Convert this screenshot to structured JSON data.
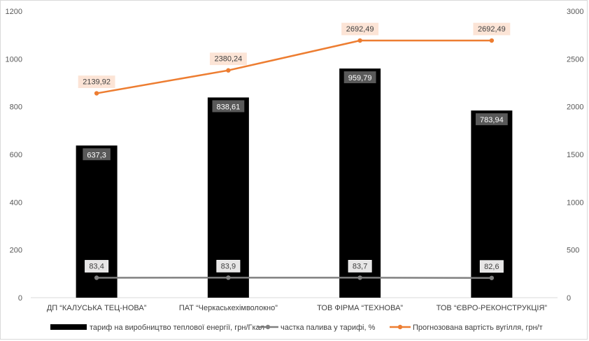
{
  "chart_data": {
    "type": "bar",
    "categories": [
      "ДП “КАЛУСЬКА ТЕЦ-НОВА”",
      "ПАТ “Черкаськехімволокно”",
      "ТОВ ФІРМА “ТЕХНОВА”",
      "ТОВ “ЄВРО-РЕКОНСТРУКЦІЯ”"
    ],
    "series": [
      {
        "name": "тариф на виробництво теплової енергії, грн/Гкал",
        "type": "bar",
        "axis": "left",
        "color": "#000000",
        "values": [
          637.3,
          838.61,
          959.79,
          783.94
        ],
        "labels": [
          "637,3",
          "838,61",
          "959,79",
          "783,94"
        ]
      },
      {
        "name": "частка палива у тарифі, %",
        "type": "line",
        "axis": "left",
        "color": "#808080",
        "values": [
          83.4,
          83.9,
          83.7,
          82.6
        ],
        "labels": [
          "83,4",
          "83,9",
          "83,7",
          "82,6"
        ]
      },
      {
        "name": "Прогнозована вартість вугілля, грн/т",
        "type": "line",
        "axis": "right",
        "color": "#ed7d31",
        "values": [
          2139.92,
          2380.24,
          2692.49,
          2692.49
        ],
        "labels": [
          "2139,92",
          "2380,24",
          "2692,49",
          "2692,49"
        ]
      }
    ],
    "y_left": {
      "min": 0,
      "max": 1200,
      "ticks": [
        0,
        200,
        400,
        600,
        800,
        1000,
        1200
      ]
    },
    "y_right": {
      "min": 0,
      "max": 3000,
      "ticks": [
        0,
        500,
        1000,
        1500,
        2000,
        2500,
        3000
      ]
    },
    "legend_position": "bottom",
    "grid": false
  }
}
